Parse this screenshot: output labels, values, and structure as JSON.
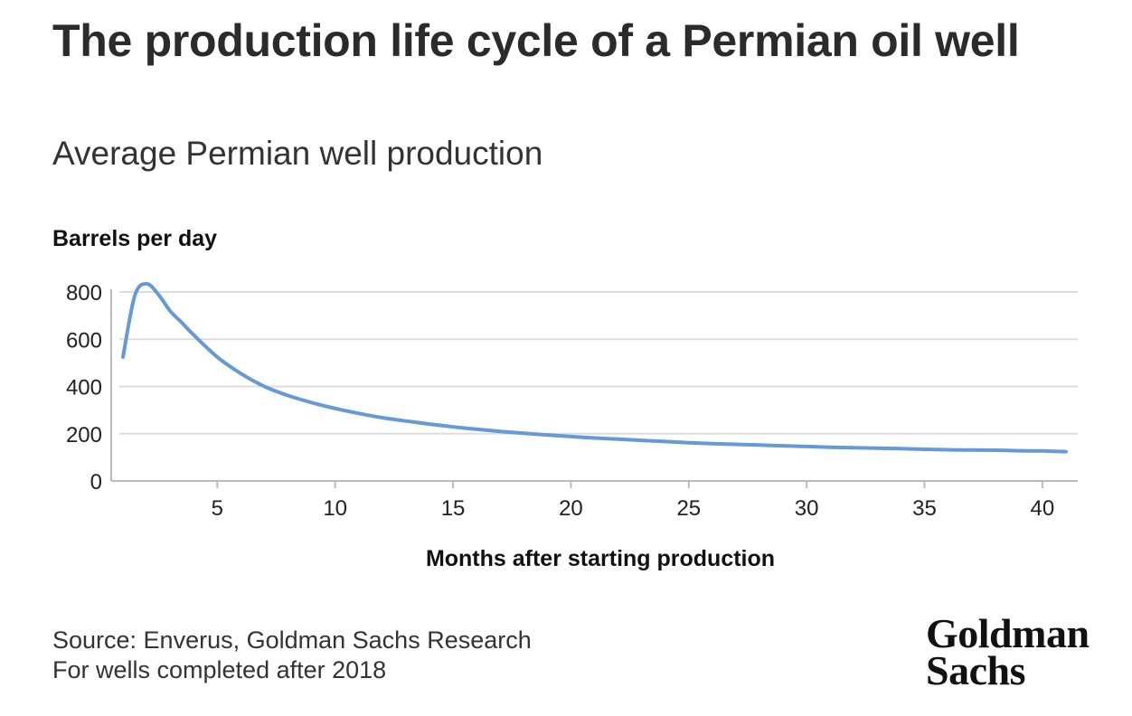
{
  "title": "The production life cycle of a Permian oil well",
  "subtitle": "Average Permian well production",
  "source": "Source: Enverus, Goldman Sachs Research",
  "note": "For wells completed after 2018",
  "logo": {
    "line1": "Goldman",
    "line2": "Sachs"
  },
  "colors": {
    "line": "#6699d8",
    "grid": "#dddddd",
    "axis": "#bbbbbb"
  },
  "chart_data": {
    "type": "line",
    "title": "The production life cycle of a Permian oil well",
    "subtitle": "Average Permian well production",
    "xlabel": "Months after starting production",
    "ylabel": "Barrels per day",
    "xlim": [
      0.5,
      41.5
    ],
    "ylim": [
      0,
      850
    ],
    "xticks": [
      5,
      10,
      15,
      20,
      25,
      30,
      35,
      40
    ],
    "yticks": [
      0,
      200,
      400,
      600,
      800
    ],
    "grid": "horizontal",
    "series": [
      {
        "x": [
          1,
          1.5,
          2,
          2.5,
          3,
          3.5,
          4,
          5,
          6,
          7,
          8,
          9,
          10,
          11,
          12,
          13,
          14,
          15,
          16,
          17,
          18,
          19,
          20,
          21,
          22,
          23,
          24,
          25,
          26,
          27,
          28,
          29,
          30,
          31,
          32,
          33,
          34,
          35,
          36,
          37,
          38,
          39,
          40,
          41
        ],
        "values": [
          525,
          785,
          835,
          790,
          720,
          670,
          618,
          525,
          455,
          400,
          362,
          332,
          307,
          286,
          268,
          254,
          241,
          229,
          219,
          210,
          202,
          195,
          188,
          182,
          177,
          172,
          167,
          162,
          158,
          155,
          152,
          149,
          146,
          143,
          141,
          139,
          137,
          134,
          132,
          131,
          130,
          128,
          127,
          124
        ]
      }
    ]
  }
}
